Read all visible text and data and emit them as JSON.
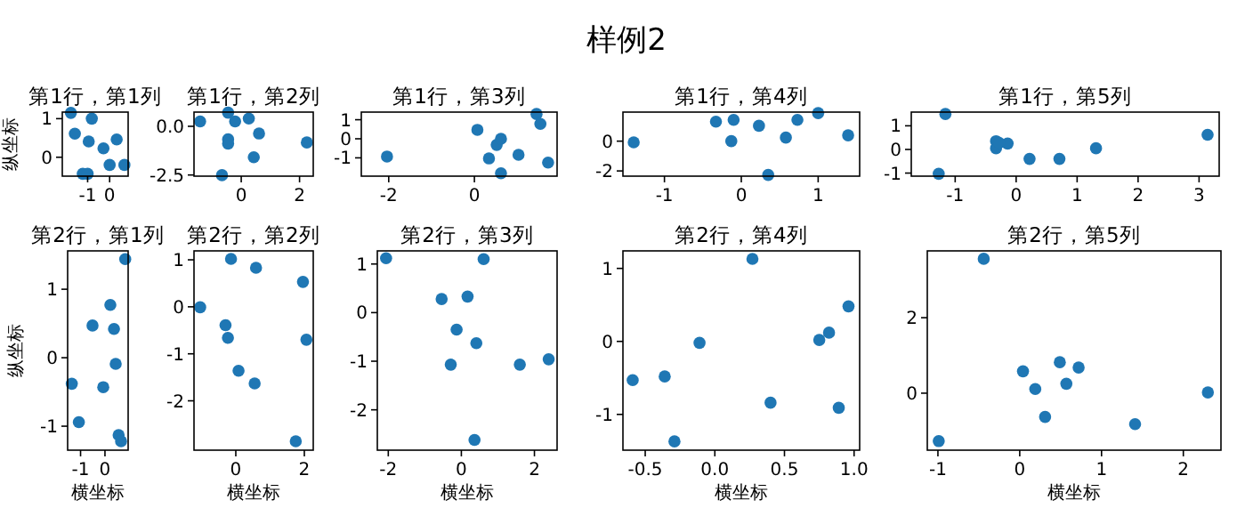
{
  "chart_data": [
    {
      "type": "other",
      "title": "样例2"
    },
    {
      "type": "scatter",
      "title": "第1行，第1列",
      "ylabel": "纵坐标",
      "color": "#1f77b4",
      "marker": "circle",
      "xlim": [
        -2.15,
        0.84
      ],
      "ylim": [
        -0.49,
        1.17
      ],
      "xticks": [
        -1,
        0
      ],
      "yticks": [
        0,
        1
      ],
      "x": [
        -1.76,
        -0.81,
        -1.58,
        -0.95,
        -0.28,
        0.32,
        0.0,
        0.67,
        -1.22,
        -1.0
      ],
      "values": [
        1.15,
        1.0,
        0.61,
        0.41,
        0.23,
        0.46,
        -0.2,
        -0.2,
        -0.43,
        -0.43
      ]
    },
    {
      "type": "scatter",
      "title": "第1行，第2列",
      "color": "#1f77b4",
      "marker": "circle",
      "xlim": [
        -1.62,
        2.47
      ],
      "ylim": [
        -2.56,
        0.73
      ],
      "xticks": [
        0,
        2
      ],
      "yticks": [
        {
          "value": 0,
          "label": "0.0"
        },
        -2.5
      ],
      "x": [
        -1.41,
        -0.45,
        -0.21,
        0.26,
        0.61,
        -0.45,
        -0.45,
        0.43,
        2.25,
        -0.66
      ],
      "values": [
        0.25,
        0.7,
        0.25,
        0.4,
        -0.37,
        -0.67,
        -0.89,
        -1.59,
        -0.83,
        -2.51
      ]
    },
    {
      "type": "scatter",
      "title": "第1行，第3列",
      "color": "#1f77b4",
      "marker": "circle",
      "xlim": [
        -2.64,
        1.93
      ],
      "ylim": [
        -1.96,
        1.4
      ],
      "xticks": [
        -2,
        0
      ],
      "yticks": [
        -1,
        0,
        1
      ],
      "x": [
        -2.04,
        0.07,
        0.52,
        0.62,
        0.34,
        1.03,
        0.62,
        1.45,
        1.54,
        1.72
      ],
      "values": [
        -0.93,
        0.47,
        -0.32,
        0.0,
        -1.03,
        -0.84,
        -1.81,
        1.3,
        0.78,
        -1.25
      ]
    },
    {
      "type": "scatter",
      "title": "第1行，第4列",
      "color": "#1f77b4",
      "marker": "circle",
      "xlim": [
        -1.54,
        1.54
      ],
      "ylim": [
        -2.35,
        1.95
      ],
      "xticks": [
        -1,
        0,
        1
      ],
      "yticks": [
        -2,
        0
      ],
      "x": [
        -1.4,
        -0.33,
        -0.1,
        -0.13,
        0.23,
        0.58,
        0.73,
        1.0,
        1.39,
        0.35
      ],
      "values": [
        -0.08,
        1.31,
        1.43,
        0.0,
        1.03,
        0.24,
        1.43,
        1.88,
        0.39,
        -2.27
      ]
    },
    {
      "type": "scatter",
      "title": "第1行，第5列",
      "color": "#1f77b4",
      "marker": "circle",
      "xlim": [
        -1.72,
        3.33
      ],
      "ylim": [
        -1.13,
        1.58
      ],
      "xticks": [
        -1,
        0,
        1,
        2,
        3
      ],
      "yticks": [
        -1,
        0,
        1
      ],
      "x": [
        -1.16,
        -1.27,
        -0.33,
        -0.33,
        -0.14,
        -0.28,
        0.22,
        0.71,
        1.31,
        3.14
      ],
      "values": [
        1.5,
        -1.03,
        0.35,
        0.05,
        0.25,
        0.28,
        -0.4,
        -0.4,
        0.05,
        0.62
      ]
    },
    {
      "type": "scatter",
      "title": "第2行，第1列",
      "xlabel": "横坐标",
      "ylabel": "纵坐标",
      "color": "#1f77b4",
      "marker": "circle",
      "xlim": [
        -1.53,
        0.95
      ],
      "ylim": [
        -1.35,
        1.56
      ],
      "xticks": [
        -1,
        0
      ],
      "yticks": [
        -1,
        0,
        1
      ],
      "x": [
        0.83,
        0.22,
        -0.51,
        0.37,
        0.44,
        -1.36,
        -0.07,
        -1.07,
        0.56,
        0.66
      ],
      "values": [
        1.44,
        0.77,
        0.47,
        0.42,
        -0.09,
        -0.38,
        -0.43,
        -0.94,
        -1.13,
        -1.22
      ]
    },
    {
      "type": "scatter",
      "title": "第2行，第2列",
      "xlabel": "横坐标",
      "color": "#1f77b4",
      "marker": "circle",
      "xlim": [
        -1.22,
        2.26
      ],
      "ylim": [
        -3.05,
        1.19
      ],
      "xticks": [
        0,
        2
      ],
      "yticks": [
        -2,
        -1,
        0,
        1
      ],
      "x": [
        -1.04,
        -0.14,
        0.59,
        1.96,
        -0.3,
        -0.23,
        2.06,
        0.08,
        0.55,
        1.75
      ],
      "values": [
        -0.01,
        1.02,
        0.83,
        0.53,
        -0.39,
        -0.66,
        -0.7,
        -1.36,
        -1.63,
        -2.86
      ]
    },
    {
      "type": "scatter",
      "title": "第2行，第3列",
      "xlabel": "横坐标",
      "color": "#1f77b4",
      "marker": "circle",
      "xlim": [
        -2.3,
        2.62
      ],
      "ylim": [
        -2.83,
        1.27
      ],
      "xticks": [
        -2,
        0,
        2
      ],
      "yticks": [
        -2,
        -1,
        0,
        1
      ],
      "x": [
        -2.06,
        0.61,
        -0.54,
        0.17,
        -0.13,
        0.41,
        -0.29,
        1.6,
        2.39,
        0.36
      ],
      "values": [
        1.12,
        1.1,
        0.28,
        0.33,
        -0.35,
        -0.63,
        -1.07,
        -1.07,
        -0.96,
        -2.62
      ]
    },
    {
      "type": "scatter",
      "title": "第2行，第4列",
      "xlabel": "横坐标",
      "color": "#1f77b4",
      "marker": "circle",
      "xlim": [
        -0.66,
        1.04
      ],
      "ylim": [
        -1.49,
        1.24
      ],
      "xticks": [
        -0.5,
        {
          "value": 0,
          "label": "0.0"
        },
        0.5,
        {
          "value": 1,
          "label": "1.0"
        }
      ],
      "yticks": [
        -1,
        0,
        1
      ],
      "x": [
        -0.59,
        -0.36,
        -0.29,
        -0.11,
        0.27,
        0.4,
        0.75,
        0.82,
        0.89,
        0.96
      ],
      "values": [
        -0.53,
        -0.48,
        -1.37,
        -0.02,
        1.13,
        -0.84,
        0.02,
        0.12,
        -0.91,
        0.48
      ]
    },
    {
      "type": "scatter",
      "title": "第2行，第5列",
      "xlabel": "横坐标",
      "color": "#1f77b4",
      "marker": "circle",
      "xlim": [
        -1.13,
        2.46
      ],
      "ylim": [
        -1.51,
        3.77
      ],
      "xticks": [
        -1,
        0,
        1,
        2
      ],
      "yticks": [
        0,
        2
      ],
      "x": [
        -0.44,
        0.04,
        0.19,
        0.49,
        0.57,
        0.72,
        0.31,
        1.41,
        2.3,
        -0.99
      ],
      "values": [
        3.56,
        0.58,
        0.11,
        0.82,
        0.25,
        0.68,
        -0.63,
        -0.82,
        0.02,
        -1.27
      ]
    }
  ]
}
